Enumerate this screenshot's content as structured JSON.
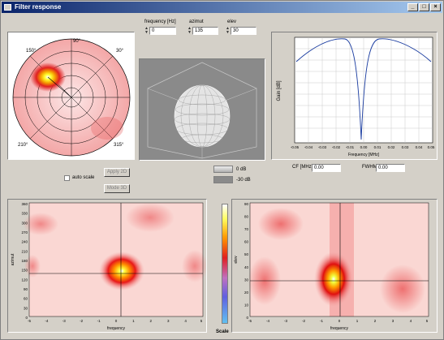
{
  "window": {
    "title": "Filter response",
    "controls": [
      "_",
      "□",
      "×"
    ]
  },
  "params": [
    {
      "label": "frequency [Hz]",
      "value": "0"
    },
    {
      "label": "azimut",
      "value": "135"
    },
    {
      "label": "elev",
      "value": "30"
    }
  ],
  "polar": {
    "angle_labels": [
      "150°",
      "90°",
      "30°",
      "210°",
      "315°"
    ]
  },
  "response": {
    "ylabel": "Gain [dB]",
    "xlabel": "Frequency [MHz]",
    "xticks": [
      "-0.05",
      "-0.04",
      "-0.03",
      "-0.02",
      "-0.01",
      "0.00",
      "0.01",
      "0.02",
      "0.03",
      "0.04",
      "0.05"
    ]
  },
  "readouts": [
    {
      "label": "CF [MHz]",
      "value": "0.00"
    },
    {
      "label": "FWHM",
      "value": "0.00"
    }
  ],
  "autoscale_label": "auto scale",
  "buttons": {
    "apply_label": "Apply 2D",
    "cancel_label": "Mode 3D"
  },
  "colorbar_labels": [
    "0 dB",
    "-30 dB"
  ],
  "map_left": {
    "ylabel": "azimut",
    "xlabel": "frequency",
    "yticks": [
      "360",
      "330",
      "300",
      "270",
      "240",
      "210",
      "180",
      "150",
      "120",
      "90",
      "60",
      "30",
      "0"
    ],
    "xticks": [
      "-5",
      "-4",
      "-3",
      "-2",
      "-1",
      "0",
      "1",
      "2",
      "3",
      "4",
      "5"
    ]
  },
  "map_right": {
    "ylabel": "elev",
    "xlabel": "frequency",
    "yticks": [
      "90",
      "80",
      "70",
      "60",
      "50",
      "40",
      "30",
      "20",
      "10",
      "0"
    ],
    "xticks": [
      "-5",
      "-4",
      "-3",
      "-2",
      "-1",
      "0",
      "1",
      "2",
      "3",
      "4",
      "5"
    ]
  },
  "scale_label": "Scale"
}
